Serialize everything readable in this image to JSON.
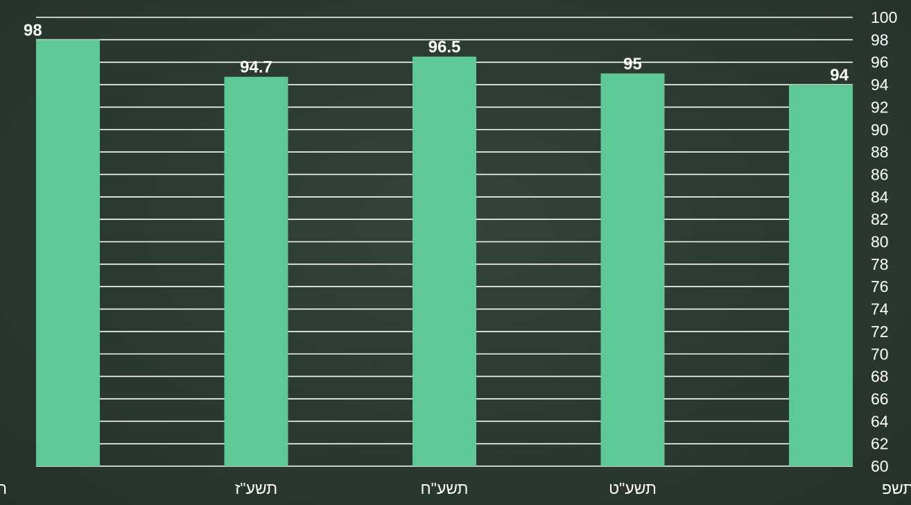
{
  "chart_data": {
    "type": "bar",
    "categories": [
      "תשע\"ו",
      "תשע\"ז",
      "תשע\"ח",
      "תשע\"ט",
      "תשפ"
    ],
    "values": [
      98,
      94.7,
      96.5,
      95,
      94
    ],
    "data_labels": [
      "98",
      "94.7",
      "96.5",
      "95",
      "94"
    ],
    "title": "",
    "xlabel": "",
    "ylabel": "",
    "ylim": [
      60,
      100
    ],
    "y_ticks": [
      60,
      62,
      64,
      66,
      68,
      70,
      72,
      74,
      76,
      78,
      80,
      82,
      84,
      86,
      88,
      90,
      92,
      94,
      96,
      98,
      100
    ],
    "y_axis_side": "right",
    "grid": true,
    "legend": "none"
  },
  "colors": {
    "background": "#2b3a30",
    "bar": "#5fc897",
    "gridline": "#ffffff",
    "text": "#ffffff"
  }
}
